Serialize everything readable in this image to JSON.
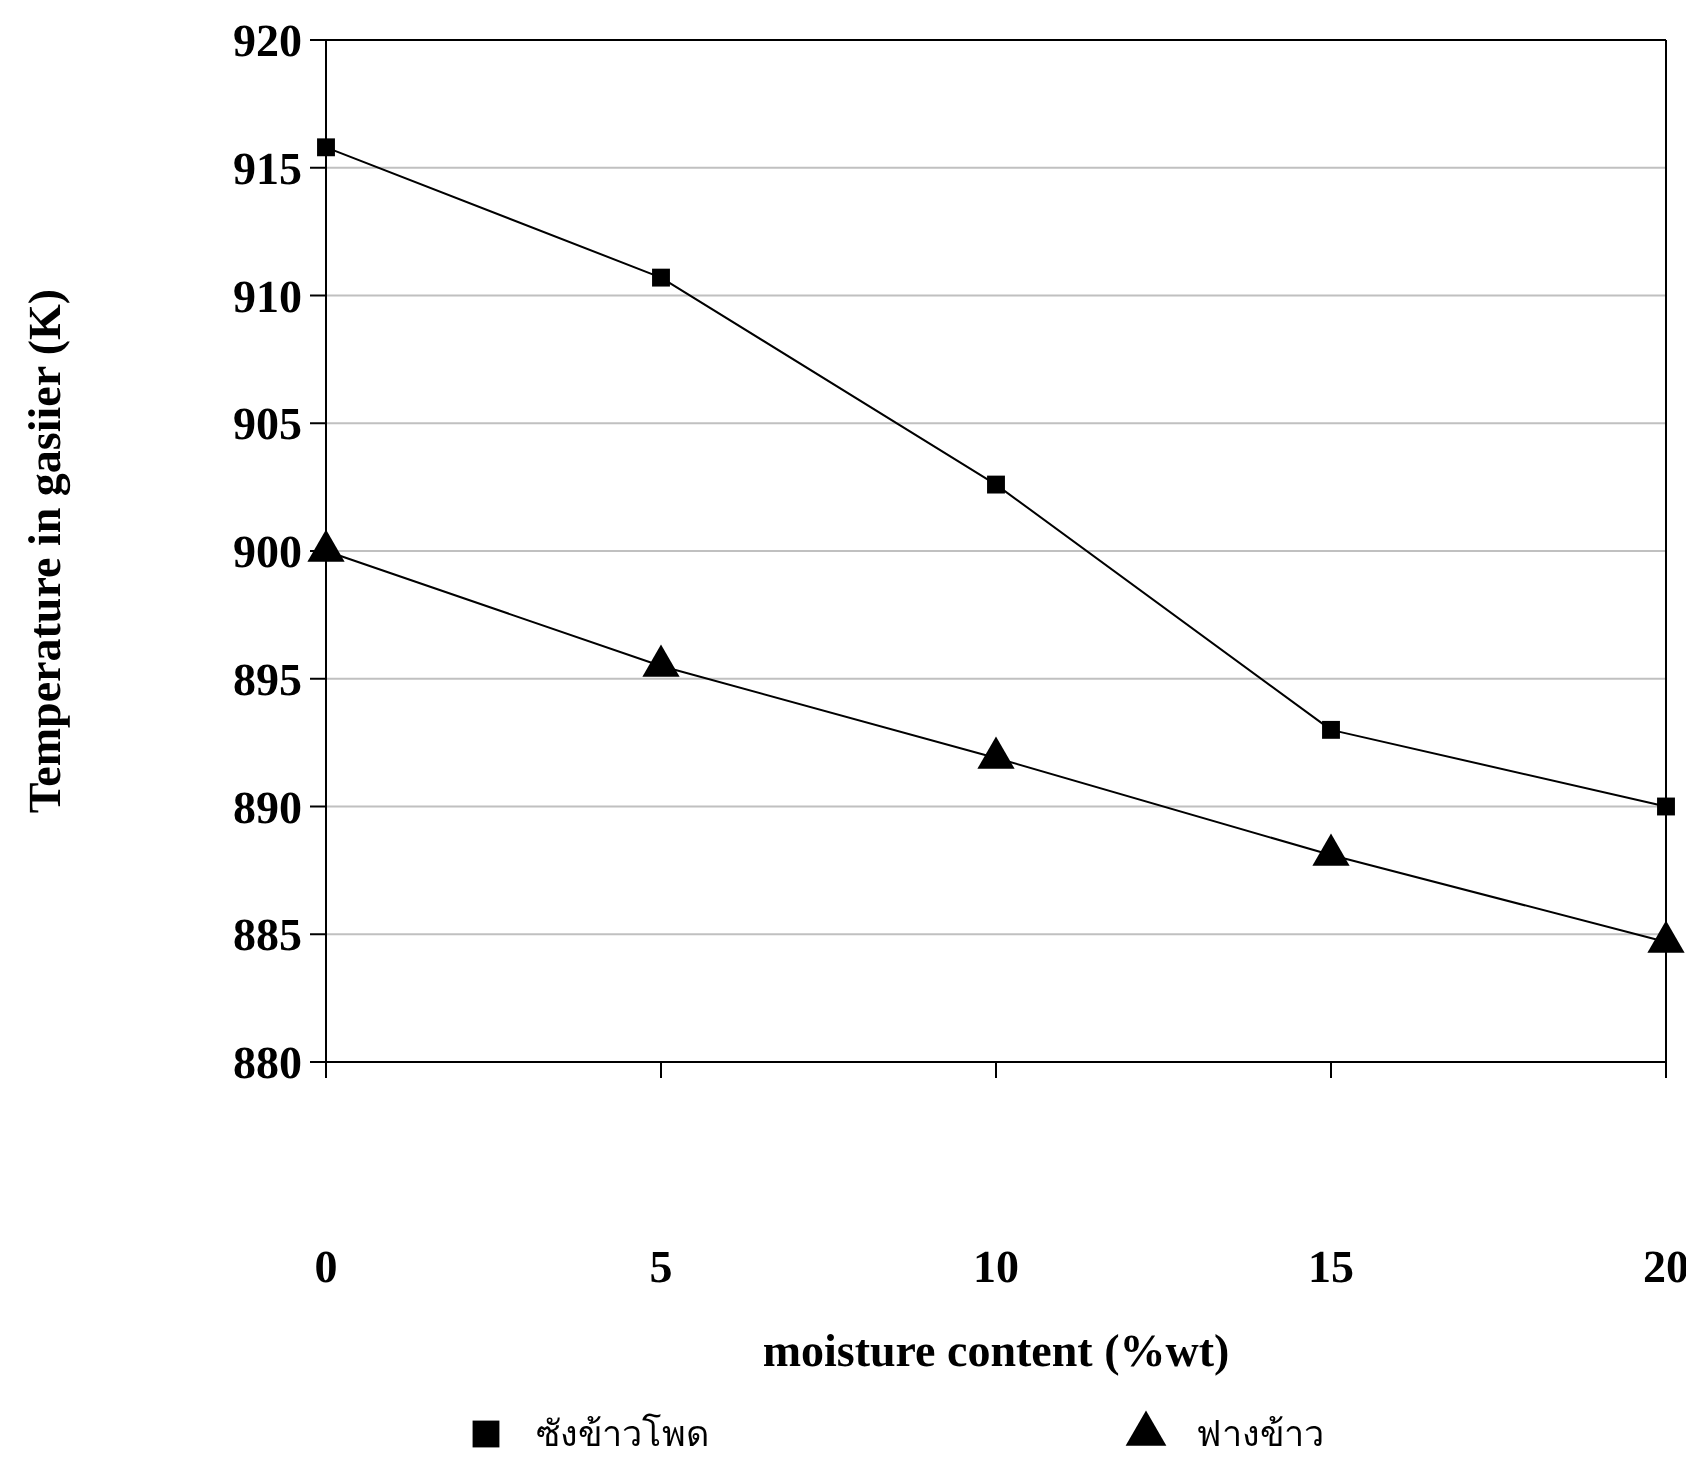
{
  "chart_data": {
    "type": "line",
    "xlabel": "moisture content (%wt)",
    "ylabel": "Temperature in gasiier (K)",
    "x": [
      0,
      5,
      10,
      15,
      20
    ],
    "xlim": [
      0,
      20
    ],
    "xticks": [
      0,
      5,
      10,
      15,
      20
    ],
    "ylim": [
      880,
      920
    ],
    "yticks": [
      880,
      885,
      890,
      895,
      900,
      905,
      910,
      915,
      920
    ],
    "grid": "y",
    "legend": "bottom",
    "line_style": "solid",
    "series": [
      {
        "name": "ซังข้าวโพด",
        "color": "#000000",
        "marker": "square",
        "values": [
          915.8,
          910.7,
          902.6,
          893.0,
          890.0
        ]
      },
      {
        "name": "ฟางข้าว",
        "color": "#000000",
        "marker": "triangle",
        "values": [
          900.0,
          895.5,
          891.9,
          888.1,
          884.7
        ]
      }
    ]
  }
}
